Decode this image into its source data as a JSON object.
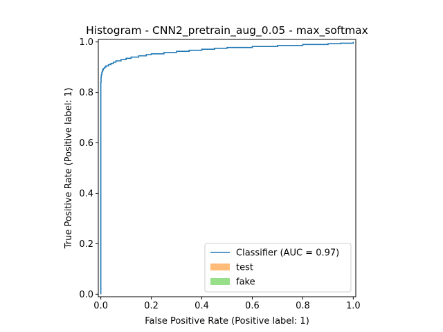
{
  "chart_data": {
    "type": "line",
    "title": "Histogram - CNN2_pretrain_aug_0.05 - max_softmax",
    "xlabel": "False Positive Rate (Positive label: 1)",
    "ylabel": "True Positive Rate (Positive label: 1)",
    "xlim": [
      -0.01,
      1.01
    ],
    "ylim": [
      -0.01,
      1.01
    ],
    "xticks": [
      "0.0",
      "0.2",
      "0.4",
      "0.6",
      "0.8",
      "1.0"
    ],
    "yticks": [
      "0.0",
      "0.2",
      "0.4",
      "0.6",
      "0.8",
      "1.0"
    ],
    "grid": false,
    "legend_position": "bottom-right",
    "series": [
      {
        "name": "Classifier (AUC = 0.97)",
        "color": "#1f77b4",
        "kind": "roc-step",
        "x": [
          0.0,
          0.0,
          0.0,
          0.001,
          0.002,
          0.004,
          0.006,
          0.008,
          0.01,
          0.015,
          0.02,
          0.03,
          0.04,
          0.05,
          0.06,
          0.08,
          0.1,
          0.12,
          0.15,
          0.18,
          0.2,
          0.25,
          0.3,
          0.35,
          0.4,
          0.45,
          0.5,
          0.6,
          0.7,
          0.8,
          0.9,
          0.95,
          1.0
        ],
        "y": [
          0.0,
          0.75,
          0.84,
          0.86,
          0.87,
          0.88,
          0.885,
          0.89,
          0.895,
          0.9,
          0.905,
          0.91,
          0.915,
          0.92,
          0.925,
          0.93,
          0.935,
          0.94,
          0.945,
          0.95,
          0.953,
          0.958,
          0.963,
          0.967,
          0.971,
          0.975,
          0.978,
          0.982,
          0.986,
          0.99,
          0.993,
          0.995,
          1.0
        ]
      },
      {
        "name": "test",
        "color": "#ffbb78",
        "kind": "legend-only"
      },
      {
        "name": "fake",
        "color": "#98df8a",
        "kind": "legend-only"
      }
    ]
  }
}
